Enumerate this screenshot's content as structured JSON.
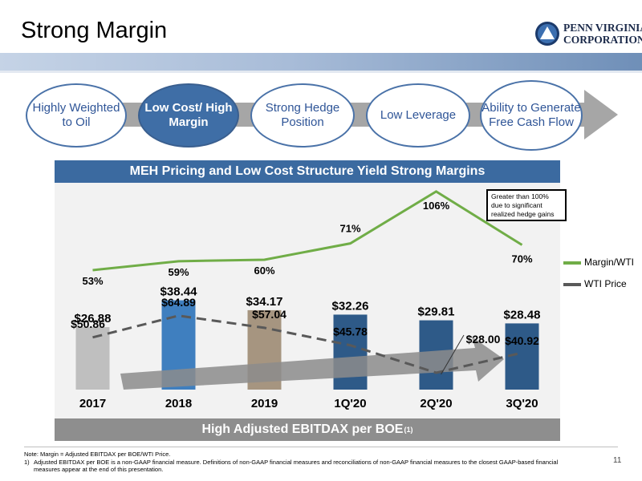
{
  "title": "Strong Margin",
  "logo": {
    "line1": "PENN VIRGINIA",
    "line2": "CORPORATION"
  },
  "pillars": [
    {
      "label": "Highly Weighted to Oil",
      "selected": false
    },
    {
      "label": "Low Cost/ High Margin",
      "selected": true
    },
    {
      "label": "Strong Hedge Position",
      "selected": false
    },
    {
      "label": "Low Leverage",
      "selected": false
    },
    {
      "label": "Ability to Generate Free Cash Flow",
      "selected": false
    }
  ],
  "banner_top": "MEH Pricing and Low Cost Structure Yield Strong Margins",
  "banner_bottom": "High Adjusted EBITDAX per BOE",
  "banner_bottom_sup": "(1)",
  "note_box": "Greater than 100% due to significant realized hedge gains",
  "legend": {
    "margin": {
      "label": "Margin/WTI",
      "color": "#70ad47"
    },
    "wti": {
      "label": "WTI Price",
      "color": "#595959"
    }
  },
  "chart_data": {
    "type": "bar",
    "categories": [
      "2017",
      "2018",
      "2019",
      "1Q'20",
      "2Q'20",
      "3Q'20"
    ],
    "bar_series": {
      "values": [
        26.88,
        38.44,
        34.17,
        32.26,
        29.81,
        28.48
      ],
      "labels": [
        "$26.88",
        "$38.44",
        "$34.17",
        "$32.26",
        "$29.81",
        "$28.48"
      ],
      "colors": [
        "#bfbfbf",
        "#3f7fbf",
        "#a69580",
        "#2e5a88",
        "#2e5a88",
        "#2e5a88"
      ]
    },
    "line_series": [
      {
        "name": "Margin/WTI",
        "values": [
          53,
          59,
          60,
          71,
          106,
          70
        ],
        "labels": [
          "53%",
          "59%",
          "60%",
          "71%",
          "106%",
          "70%"
        ],
        "color": "#70ad47",
        "style": "solid"
      },
      {
        "name": "WTI Price",
        "values": [
          50.86,
          64.89,
          57.04,
          45.78,
          28.0,
          40.92
        ],
        "labels": [
          "$50.86",
          "$64.89",
          "$57.04",
          "$45.78",
          "$28.00",
          "$40.92"
        ],
        "color": "#595959",
        "style": "dashed"
      }
    ]
  },
  "footnotes": {
    "note": "Note: Margin = Adjusted EBITDAX per BOE/WTI Price.",
    "n1_num": "1)",
    "n1": "Adjusted EBITDAX per BOE is a non-GAAP financial measure. Definitions of non-GAAP financial measures and reconciliations of non-GAAP financial measures to the closest GAAP-based financial measures appear at the end of this presentation."
  },
  "page_number": "11"
}
